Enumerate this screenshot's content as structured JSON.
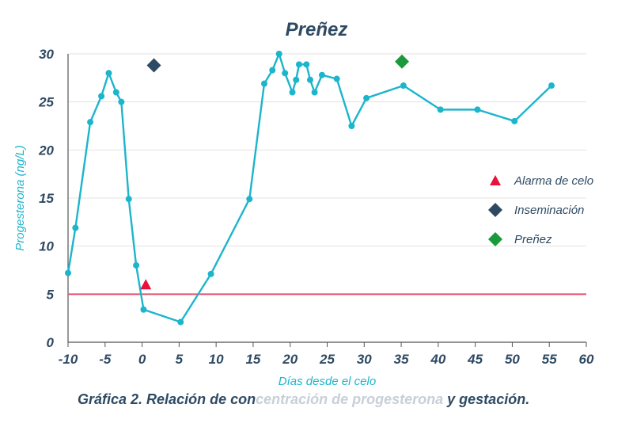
{
  "chart_data": {
    "type": "line",
    "title": "Preñez",
    "xlabel": "Días desde el celo",
    "ylabel": "Progesterona (ng/L)",
    "xlim": [
      -10,
      60
    ],
    "ylim": [
      0,
      30
    ],
    "xticks": [
      -10,
      -5,
      0,
      5,
      10,
      15,
      20,
      25,
      30,
      35,
      40,
      45,
      50,
      55,
      60
    ],
    "xtick_labels": [
      "-10",
      "-5",
      "0",
      "5",
      "10",
      "15",
      "20",
      "25",
      "30",
      "35",
      "40",
      "45",
      "50",
      "55",
      "60"
    ],
    "yticks": [
      0,
      5,
      10,
      15,
      20,
      25,
      30
    ],
    "ytick_labels": [
      "0",
      "5",
      "10",
      "15",
      "20",
      "25",
      "30"
    ],
    "grid": "horizontal",
    "legend_position": "right",
    "series": [
      {
        "type": "line",
        "color": "#1cb5cc",
        "x": [
          -10,
          -9,
          -7,
          -5.5,
          -4.5,
          -3.5,
          -2.8,
          -1.8,
          -0.8,
          0.2,
          5.2,
          9.3,
          14.5,
          16.5,
          17.6,
          18.5,
          19.3,
          20.3,
          20.8,
          21.2,
          22.2,
          22.7,
          23.3,
          24.3,
          26.3,
          28.3,
          30.3,
          35.3,
          40.3,
          45.3,
          50.3,
          55.3
        ],
        "y": [
          7.2,
          11.9,
          22.9,
          25.6,
          28,
          26,
          25,
          14.9,
          8,
          3.4,
          2.1,
          7.1,
          14.9,
          26.9,
          28.3,
          30,
          28,
          26,
          27.3,
          28.9,
          28.9,
          27.3,
          26,
          27.8,
          27.4,
          22.5,
          25.4,
          26.7,
          24.2,
          24.2,
          23,
          26.7
        ]
      },
      {
        "name": "Alarma de celo",
        "type": "marker",
        "marker": "triangle",
        "color": "#e8123c",
        "x": [
          0.5
        ],
        "y": [
          6
        ]
      },
      {
        "name": "Inseminación",
        "type": "marker",
        "marker": "diamond",
        "color": "#2e4a63",
        "x": [
          1.6
        ],
        "y": [
          28.8
        ]
      },
      {
        "name": "Preñez",
        "type": "marker",
        "marker": "diamond",
        "color": "#1a9a3c",
        "x": [
          35.1
        ],
        "y": [
          29.2
        ]
      },
      {
        "type": "hline",
        "color": "#e8506e",
        "y": [
          5
        ]
      }
    ]
  },
  "caption": {
    "part1": "Gráfica 2. Relación de con",
    "part2": "centración de progesterona",
    "part3": " y gestación."
  }
}
